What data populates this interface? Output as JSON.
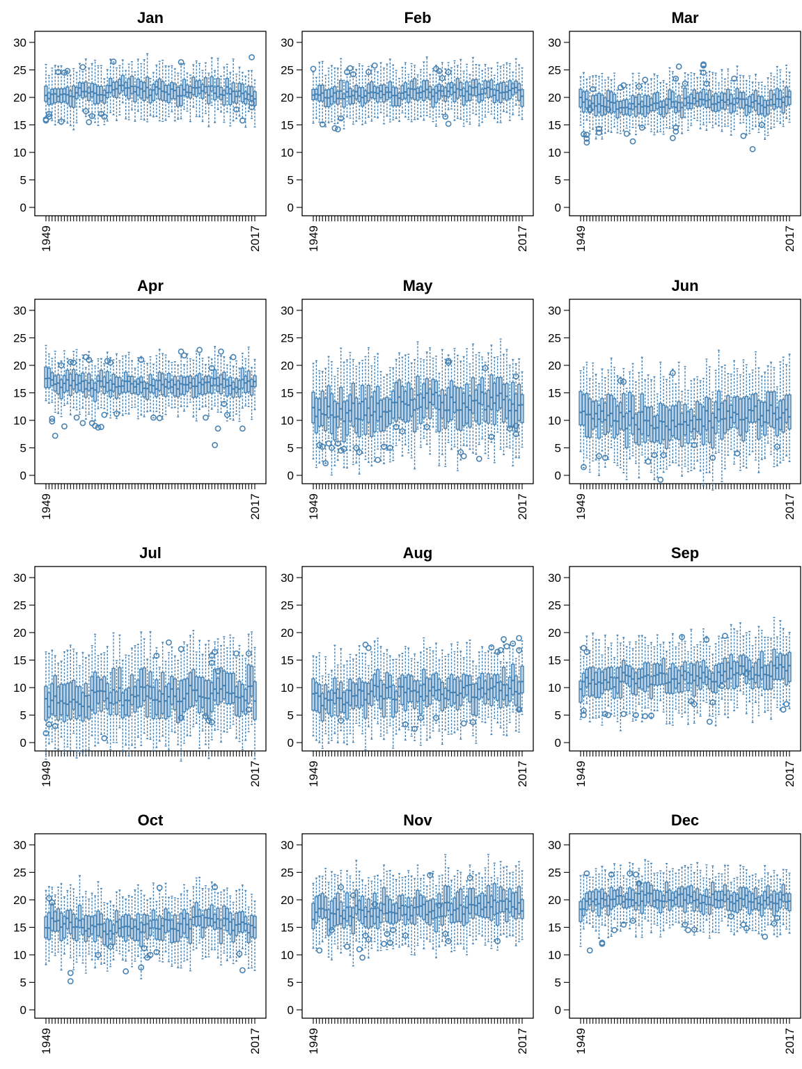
{
  "figure": {
    "series_color": "#4682B4"
  },
  "chart_data": [
    {
      "type": "boxplot",
      "title": "Jan",
      "x_first": "1949",
      "x_last": "2017",
      "n_years": 69,
      "ylim": [
        0,
        31
      ],
      "yticks": [
        0,
        5,
        10,
        15,
        20,
        25,
        30
      ],
      "median_trend": [
        20.0,
        20.8,
        21.0,
        21.3,
        21.5,
        21.2,
        21.0,
        21.0,
        21.3,
        21.0,
        20.2
      ],
      "box_halfwidth": 1.4,
      "whisker_extent": 3.4,
      "outliers": [
        [
          1949,
          16.0
        ],
        [
          1949,
          15.8
        ],
        [
          1950,
          17.0
        ],
        [
          1950,
          16.5
        ],
        [
          1953,
          24.6
        ],
        [
          1954,
          15.6
        ],
        [
          1955,
          24.5
        ],
        [
          1956,
          24.8
        ],
        [
          1961,
          25.5
        ],
        [
          1962,
          17.5
        ],
        [
          1963,
          15.5
        ],
        [
          1964,
          16.6
        ],
        [
          1967,
          17.0
        ],
        [
          1968,
          16.5
        ],
        [
          1971,
          26.5
        ],
        [
          1993,
          26.4
        ],
        [
          2011,
          17.8
        ],
        [
          2013,
          15.8
        ],
        [
          2016,
          27.3
        ],
        [
          2016,
          19.0
        ],
        [
          2016,
          18.2
        ]
      ]
    },
    {
      "type": "boxplot",
      "title": "Feb",
      "x_first": "1949",
      "x_last": "2017",
      "n_years": 69,
      "ylim": [
        0,
        31
      ],
      "yticks": [
        0,
        5,
        10,
        15,
        20,
        25,
        30
      ],
      "median_trend": [
        20.0,
        20.3,
        20.5,
        20.4,
        20.5,
        20.8,
        21.0,
        21.0,
        21.3,
        21.0,
        21.0
      ],
      "box_halfwidth": 1.4,
      "whisker_extent": 3.4,
      "outliers": [
        [
          1949,
          25.2
        ],
        [
          1952,
          15.1
        ],
        [
          1956,
          14.4
        ],
        [
          1957,
          14.2
        ],
        [
          1958,
          16.2
        ],
        [
          1960,
          24.6
        ],
        [
          1961,
          25.3
        ],
        [
          1962,
          24.2
        ],
        [
          1967,
          24.6
        ],
        [
          1969,
          25.8
        ],
        [
          1989,
          25.2
        ],
        [
          1990,
          24.8
        ],
        [
          1991,
          23.5
        ],
        [
          1992,
          16.5
        ],
        [
          1993,
          24.6
        ],
        [
          1993,
          15.2
        ]
      ]
    },
    {
      "type": "boxplot",
      "title": "Mar",
      "x_first": "1949",
      "x_last": "2017",
      "n_years": 69,
      "ylim": [
        0,
        31
      ],
      "yticks": [
        0,
        5,
        10,
        15,
        20,
        25,
        30
      ],
      "median_trend": [
        19.5,
        18.8,
        18.5,
        18.6,
        18.8,
        19.0,
        19.5,
        19.6,
        19.2,
        19.0,
        19.5
      ],
      "box_halfwidth": 1.4,
      "whisker_extent": 3.4,
      "outliers": [
        [
          1950,
          13.3
        ],
        [
          1951,
          13.2
        ],
        [
          1951,
          12.5
        ],
        [
          1951,
          11.8
        ],
        [
          1952,
          17.8
        ],
        [
          1953,
          21.5
        ],
        [
          1955,
          14.3
        ],
        [
          1955,
          13.6
        ],
        [
          1958,
          17.8
        ],
        [
          1962,
          21.8
        ],
        [
          1963,
          22.2
        ],
        [
          1964,
          13.4
        ],
        [
          1966,
          12.0
        ],
        [
          1968,
          22.0
        ],
        [
          1969,
          14.5
        ],
        [
          1970,
          23.2
        ],
        [
          1979,
          12.6
        ],
        [
          1980,
          23.4
        ],
        [
          1980,
          14.5
        ],
        [
          1980,
          13.8
        ],
        [
          1981,
          25.6
        ],
        [
          1983,
          22.5
        ],
        [
          1989,
          26.0
        ],
        [
          1989,
          25.8
        ],
        [
          1989,
          24.5
        ],
        [
          1990,
          22.5
        ],
        [
          1999,
          23.4
        ],
        [
          2002,
          13.0
        ],
        [
          2005,
          10.6
        ],
        [
          2008,
          15.0
        ]
      ]
    },
    {
      "type": "boxplot",
      "title": "Apr",
      "x_first": "1949",
      "x_last": "2017",
      "n_years": 69,
      "ylim": [
        0,
        31
      ],
      "yticks": [
        0,
        5,
        10,
        15,
        20,
        25,
        30
      ],
      "median_trend": [
        17.0,
        16.8,
        16.4,
        16.2,
        16.3,
        16.5,
        16.5,
        16.6,
        16.8,
        16.5,
        16.8
      ],
      "box_halfwidth": 1.5,
      "whisker_extent": 3.5,
      "outliers": [
        [
          1951,
          10.3
        ],
        [
          1951,
          9.8
        ],
        [
          1952,
          7.2
        ],
        [
          1954,
          20.0
        ],
        [
          1955,
          8.9
        ],
        [
          1957,
          20.6
        ],
        [
          1958,
          20.5
        ],
        [
          1959,
          10.5
        ],
        [
          1961,
          9.5
        ],
        [
          1962,
          21.5
        ],
        [
          1963,
          21.0
        ],
        [
          1964,
          9.5
        ],
        [
          1965,
          9.0
        ],
        [
          1966,
          8.7
        ],
        [
          1967,
          8.8
        ],
        [
          1968,
          11.0
        ],
        [
          1969,
          20.8
        ],
        [
          1970,
          20.5
        ],
        [
          1972,
          11.2
        ],
        [
          1980,
          21.0
        ],
        [
          1984,
          10.5
        ],
        [
          1986,
          10.4
        ],
        [
          1993,
          22.5
        ],
        [
          1994,
          21.8
        ],
        [
          1999,
          22.8
        ],
        [
          2001,
          10.5
        ],
        [
          2003,
          19.5
        ],
        [
          2004,
          5.5
        ],
        [
          2005,
          8.5
        ],
        [
          2006,
          22.5
        ],
        [
          2007,
          13.0
        ],
        [
          2008,
          11.0
        ],
        [
          2010,
          21.5
        ],
        [
          2013,
          8.5
        ]
      ]
    },
    {
      "type": "boxplot",
      "title": "May",
      "x_first": "1949",
      "x_last": "2017",
      "n_years": 69,
      "ylim": [
        0,
        31
      ],
      "yticks": [
        0,
        5,
        10,
        15,
        20,
        25,
        30
      ],
      "median_trend": [
        11.0,
        11.2,
        11.5,
        12.0,
        12.5,
        13.0,
        13.5,
        13.5,
        13.8,
        13.5,
        13.0
      ],
      "box_halfwidth": 3.0,
      "whisker_extent": 6.0,
      "outliers": [
        [
          1951,
          5.5
        ],
        [
          1952,
          5.2
        ],
        [
          1953,
          2.2
        ],
        [
          1954,
          5.8
        ],
        [
          1955,
          5.0
        ],
        [
          1957,
          5.8
        ],
        [
          1958,
          4.5
        ],
        [
          1959,
          4.8
        ],
        [
          1963,
          5.0
        ],
        [
          1964,
          4.2
        ],
        [
          1970,
          2.8
        ],
        [
          1972,
          5.2
        ],
        [
          1974,
          5.0
        ],
        [
          1976,
          8.8
        ],
        [
          1978,
          8.0
        ],
        [
          1986,
          8.8
        ],
        [
          1993,
          20.5
        ],
        [
          1993,
          20.8
        ],
        [
          1997,
          4.2
        ],
        [
          1998,
          3.5
        ],
        [
          2003,
          3.0
        ],
        [
          2005,
          19.5
        ],
        [
          2007,
          7.0
        ],
        [
          2013,
          8.5
        ],
        [
          2015,
          7.5
        ],
        [
          2015,
          9.0
        ],
        [
          2015,
          18.0
        ]
      ]
    },
    {
      "type": "boxplot",
      "title": "Jun",
      "x_first": "1949",
      "x_last": "2017",
      "n_years": 69,
      "ylim": [
        0,
        31
      ],
      "yticks": [
        0,
        5,
        10,
        15,
        20,
        25,
        30
      ],
      "median_trend": [
        10.0,
        10.5,
        10.3,
        10.0,
        9.8,
        10.0,
        10.3,
        10.5,
        10.8,
        11.0,
        11.5
      ],
      "box_halfwidth": 3.0,
      "whisker_extent": 6.0,
      "outliers": [
        [
          1950,
          1.5
        ],
        [
          1955,
          3.5
        ],
        [
          1957,
          3.2
        ],
        [
          1962,
          17.2
        ],
        [
          1963,
          17.0
        ],
        [
          1971,
          2.5
        ],
        [
          1973,
          3.7
        ],
        [
          1975,
          -0.8
        ],
        [
          1976,
          3.7
        ],
        [
          1979,
          18.6
        ],
        [
          1986,
          5.5
        ],
        [
          1992,
          3.2
        ],
        [
          2000,
          4.0
        ],
        [
          2013,
          5.2
        ]
      ]
    },
    {
      "type": "boxplot",
      "title": "Jul",
      "x_first": "1949",
      "x_last": "2017",
      "n_years": 69,
      "ylim": [
        0,
        31
      ],
      "yticks": [
        0,
        5,
        10,
        15,
        20,
        25,
        30
      ],
      "median_trend": [
        6.5,
        7.5,
        8.0,
        8.2,
        8.5,
        8.8,
        9.0,
        9.2,
        9.0,
        8.8,
        9.0
      ],
      "box_halfwidth": 2.8,
      "whisker_extent": 5.8,
      "outliers": [
        [
          1949,
          1.7
        ],
        [
          1950,
          3.3
        ],
        [
          1952,
          3.0
        ],
        [
          1968,
          0.8
        ],
        [
          1985,
          15.8
        ],
        [
          1989,
          18.2
        ],
        [
          1993,
          17.0
        ],
        [
          1993,
          4.5
        ],
        [
          2001,
          4.8
        ],
        [
          2002,
          4.0
        ],
        [
          2003,
          3.7
        ],
        [
          2003,
          15.8
        ],
        [
          2003,
          14.5
        ],
        [
          2004,
          16.5
        ],
        [
          2005,
          13.0
        ],
        [
          2011,
          16.2
        ],
        [
          2015,
          16.2
        ],
        [
          2015,
          6.0
        ]
      ]
    },
    {
      "type": "boxplot",
      "title": "Aug",
      "x_first": "1949",
      "x_last": "2017",
      "n_years": 69,
      "ylim": [
        0,
        31
      ],
      "yticks": [
        0,
        5,
        10,
        15,
        20,
        25,
        30
      ],
      "median_trend": [
        7.5,
        8.0,
        8.5,
        9.0,
        9.2,
        9.5,
        9.5,
        9.3,
        9.5,
        9.8,
        10.0
      ],
      "box_halfwidth": 2.4,
      "whisker_extent": 5.0,
      "outliers": [
        [
          1958,
          4.0
        ],
        [
          1966,
          17.8
        ],
        [
          1967,
          17.2
        ],
        [
          1979,
          3.3
        ],
        [
          1982,
          2.5
        ],
        [
          1984,
          4.5
        ],
        [
          1989,
          4.5
        ],
        [
          1998,
          3.5
        ],
        [
          2001,
          3.7
        ],
        [
          2007,
          17.3
        ],
        [
          2009,
          16.5
        ],
        [
          2010,
          16.8
        ],
        [
          2011,
          18.8
        ],
        [
          2012,
          17.5
        ],
        [
          2014,
          18.0
        ],
        [
          2016,
          19.0
        ],
        [
          2016,
          16.8
        ],
        [
          2016,
          6.0
        ]
      ]
    },
    {
      "type": "boxplot",
      "title": "Sep",
      "x_first": "1949",
      "x_last": "2017",
      "n_years": 69,
      "ylim": [
        0,
        31
      ],
      "yticks": [
        0,
        5,
        10,
        15,
        20,
        25,
        30
      ],
      "median_trend": [
        11.0,
        11.2,
        11.5,
        11.8,
        11.8,
        12.0,
        12.3,
        12.5,
        12.8,
        13.0,
        13.5
      ],
      "box_halfwidth": 2.2,
      "whisker_extent": 4.8,
      "outliers": [
        [
          1950,
          17.2
        ],
        [
          1950,
          5.8
        ],
        [
          1950,
          5.0
        ],
        [
          1951,
          16.5
        ],
        [
          1957,
          5.2
        ],
        [
          1958,
          5.0
        ],
        [
          1963,
          5.2
        ],
        [
          1967,
          5.0
        ],
        [
          1970,
          4.8
        ],
        [
          1972,
          4.9
        ],
        [
          1982,
          19.2
        ],
        [
          1985,
          7.5
        ],
        [
          1986,
          7.0
        ],
        [
          1990,
          18.7
        ],
        [
          1991,
          3.8
        ],
        [
          1992,
          7.3
        ],
        [
          1995,
          10.3
        ],
        [
          1996,
          19.4
        ],
        [
          2003,
          12.5
        ],
        [
          2015,
          6.0
        ],
        [
          2016,
          7.0
        ]
      ]
    },
    {
      "type": "boxplot",
      "title": "Oct",
      "x_first": "1949",
      "x_last": "2017",
      "n_years": 69,
      "ylim": [
        0,
        31
      ],
      "yticks": [
        0,
        5,
        10,
        15,
        20,
        25,
        30
      ],
      "median_trend": [
        16.0,
        15.8,
        15.0,
        14.8,
        15.0,
        15.2,
        15.5,
        15.8,
        16.0,
        15.5,
        15.0
      ],
      "box_halfwidth": 2.0,
      "whisker_extent": 4.6,
      "outliers": [
        [
          1950,
          20.3
        ],
        [
          1951,
          19.5
        ],
        [
          1957,
          6.7
        ],
        [
          1957,
          5.2
        ],
        [
          1966,
          10.0
        ],
        [
          1970,
          11.5
        ],
        [
          1975,
          7.0
        ],
        [
          1980,
          7.7
        ],
        [
          1981,
          11.2
        ],
        [
          1982,
          9.5
        ],
        [
          1983,
          10.0
        ],
        [
          1985,
          10.5
        ],
        [
          1986,
          22.2
        ],
        [
          2004,
          22.3
        ],
        [
          2012,
          10.2
        ],
        [
          2013,
          7.2
        ]
      ]
    },
    {
      "type": "boxplot",
      "title": "Nov",
      "x_first": "1949",
      "x_last": "2017",
      "n_years": 69,
      "ylim": [
        0,
        31
      ],
      "yticks": [
        0,
        5,
        10,
        15,
        20,
        25,
        30
      ],
      "median_trend": [
        17.5,
        17.8,
        18.0,
        18.2,
        18.0,
        17.8,
        18.0,
        18.5,
        18.5,
        18.8,
        18.5
      ],
      "box_halfwidth": 2.2,
      "whisker_extent": 4.6,
      "outliers": [
        [
          1951,
          10.8
        ],
        [
          1955,
          14.5
        ],
        [
          1958,
          22.3
        ],
        [
          1960,
          11.5
        ],
        [
          1962,
          20.8
        ],
        [
          1964,
          11.0
        ],
        [
          1965,
          9.5
        ],
        [
          1966,
          13.5
        ],
        [
          1967,
          12.8
        ],
        [
          1969,
          19.2
        ],
        [
          1972,
          12.0
        ],
        [
          1973,
          13.8
        ],
        [
          1974,
          12.2
        ],
        [
          1975,
          14.5
        ],
        [
          1979,
          13.5
        ],
        [
          1987,
          24.5
        ],
        [
          1990,
          19.0
        ],
        [
          1992,
          13.8
        ],
        [
          1993,
          12.5
        ],
        [
          2000,
          24.0
        ],
        [
          2009,
          12.5
        ]
      ]
    },
    {
      "type": "boxplot",
      "title": "Dec",
      "x_first": "1949",
      "x_last": "2017",
      "n_years": 69,
      "ylim": [
        0,
        31
      ],
      "yticks": [
        0,
        5,
        10,
        15,
        20,
        25,
        30
      ],
      "median_trend": [
        19.0,
        19.5,
        20.0,
        20.5,
        20.5,
        20.3,
        20.0,
        20.2,
        20.0,
        20.0,
        20.5
      ],
      "box_halfwidth": 1.6,
      "whisker_extent": 3.8,
      "outliers": [
        [
          1951,
          24.8
        ],
        [
          1952,
          10.8
        ],
        [
          1956,
          12.2
        ],
        [
          1956,
          12.0
        ],
        [
          1959,
          24.6
        ],
        [
          1960,
          14.5
        ],
        [
          1963,
          15.5
        ],
        [
          1965,
          24.8
        ],
        [
          1966,
          16.2
        ],
        [
          1967,
          24.6
        ],
        [
          1968,
          23.0
        ],
        [
          1983,
          15.5
        ],
        [
          1984,
          14.5
        ],
        [
          1986,
          14.6
        ],
        [
          1998,
          17.0
        ],
        [
          2002,
          15.5
        ],
        [
          2003,
          14.8
        ],
        [
          2009,
          13.3
        ],
        [
          2012,
          15.7
        ],
        [
          2013,
          16.7
        ]
      ]
    }
  ]
}
